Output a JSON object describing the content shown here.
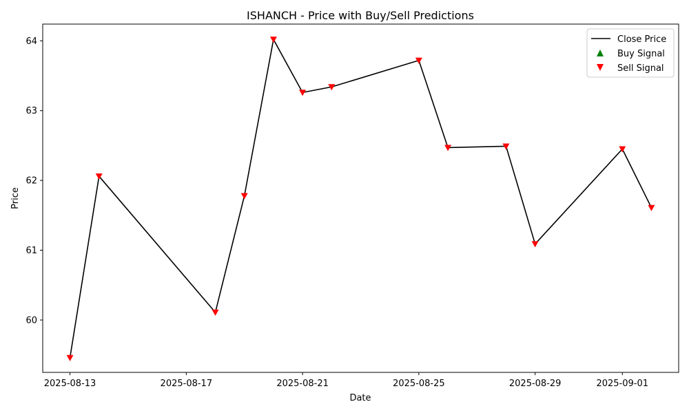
{
  "chart_data": {
    "type": "line",
    "title": "ISHANCH - Price with Buy/Sell Predictions",
    "xlabel": "Date",
    "ylabel": "Price",
    "x_range": [
      "2025-08-12T01:30",
      "2025-09-02T22:30"
    ],
    "ylim": [
      59.25,
      64.24
    ],
    "x_ticks": [
      "2025-08-13",
      "2025-08-17",
      "2025-08-21",
      "2025-08-25",
      "2025-08-29",
      "2025-09-01"
    ],
    "y_ticks": [
      60,
      61,
      62,
      63,
      64
    ],
    "grid": false,
    "legend_position": "top-right",
    "colors": {
      "line": "#000000",
      "buy": "#008000",
      "sell": "#ff0000"
    },
    "series": [
      {
        "name": "Close Price",
        "kind": "line",
        "points": [
          {
            "date": "2025-08-13",
            "value": 59.46
          },
          {
            "date": "2025-08-14",
            "value": 62.06
          },
          {
            "date": "2025-08-18",
            "value": 60.11
          },
          {
            "date": "2025-08-19",
            "value": 61.78
          },
          {
            "date": "2025-08-20",
            "value": 64.02
          },
          {
            "date": "2025-08-21",
            "value": 63.26
          },
          {
            "date": "2025-08-22",
            "value": 63.34
          },
          {
            "date": "2025-08-25",
            "value": 63.72
          },
          {
            "date": "2025-08-26",
            "value": 62.47
          },
          {
            "date": "2025-08-28",
            "value": 62.49
          },
          {
            "date": "2025-08-29",
            "value": 61.09
          },
          {
            "date": "2025-09-01",
            "value": 62.45
          },
          {
            "date": "2025-09-02",
            "value": 61.61
          }
        ]
      },
      {
        "name": "Buy Signal",
        "kind": "marker-up",
        "points": []
      },
      {
        "name": "Sell Signal",
        "kind": "marker-down",
        "points": [
          {
            "date": "2025-08-13",
            "value": 59.46
          },
          {
            "date": "2025-08-14",
            "value": 62.06
          },
          {
            "date": "2025-08-18",
            "value": 60.11
          },
          {
            "date": "2025-08-19",
            "value": 61.78
          },
          {
            "date": "2025-08-20",
            "value": 64.02
          },
          {
            "date": "2025-08-21",
            "value": 63.26
          },
          {
            "date": "2025-08-22",
            "value": 63.34
          },
          {
            "date": "2025-08-25",
            "value": 63.72
          },
          {
            "date": "2025-08-26",
            "value": 62.47
          },
          {
            "date": "2025-08-28",
            "value": 62.49
          },
          {
            "date": "2025-08-29",
            "value": 61.09
          },
          {
            "date": "2025-09-01",
            "value": 62.45
          },
          {
            "date": "2025-09-02",
            "value": 61.61
          }
        ]
      }
    ]
  }
}
